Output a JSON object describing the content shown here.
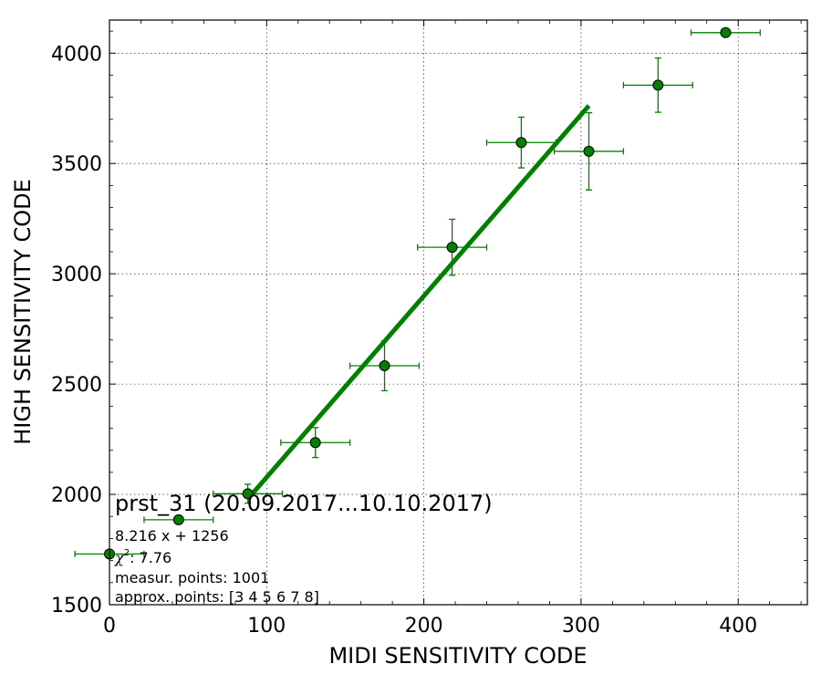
{
  "chart_data": {
    "type": "scatter",
    "title": "",
    "xlabel": "MIDI SENSITIVITY CODE",
    "ylabel": "HIGH SENSITIVITY CODE",
    "xlim": [
      0,
      444
    ],
    "ylim": [
      1500,
      4150
    ],
    "xticks": [
      0,
      100,
      200,
      300,
      400
    ],
    "yticks": [
      1500,
      2000,
      2500,
      3000,
      3500,
      4000
    ],
    "grid": true,
    "colors": {
      "points": "#008000",
      "fit": "#008000",
      "errorbars": "#008000"
    },
    "series": [
      {
        "type": "errorbar-scatter",
        "points": [
          {
            "x": 0,
            "y": 1730,
            "xerr": 22,
            "yerr": 0
          },
          {
            "x": 44,
            "y": 1885,
            "xerr": 22,
            "yerr": 0
          },
          {
            "x": 88,
            "y": 2003,
            "xerr": 22,
            "yerr": 43
          },
          {
            "x": 131,
            "y": 2235,
            "xerr": 22,
            "yerr": 68
          },
          {
            "x": 175,
            "y": 2583,
            "xerr": 22,
            "yerr": 113
          },
          {
            "x": 218,
            "y": 3120,
            "xerr": 22,
            "yerr": 127
          },
          {
            "x": 262,
            "y": 3595,
            "xerr": 22,
            "yerr": 115
          },
          {
            "x": 305,
            "y": 3555,
            "xerr": 22,
            "yerr": 175
          },
          {
            "x": 349,
            "y": 3855,
            "xerr": 22,
            "yerr": 123
          },
          {
            "x": 392,
            "y": 4093,
            "xerr": 22,
            "yerr": 0
          }
        ]
      },
      {
        "type": "fit-line",
        "slope": 8.216,
        "intercept": 1256,
        "x_range": [
          88,
          305
        ]
      }
    ],
    "annotations": {
      "label": "prst_31 (20.09.2017...10.10.2017)",
      "fit": "8.216 x + 1256",
      "chi_symbol": "χ",
      "chi_sup": "2",
      "chi_value": ": 7.76",
      "measur": "measur. points: 1001",
      "approx": "approx. points: [3 4 5 6 7 8]"
    }
  }
}
